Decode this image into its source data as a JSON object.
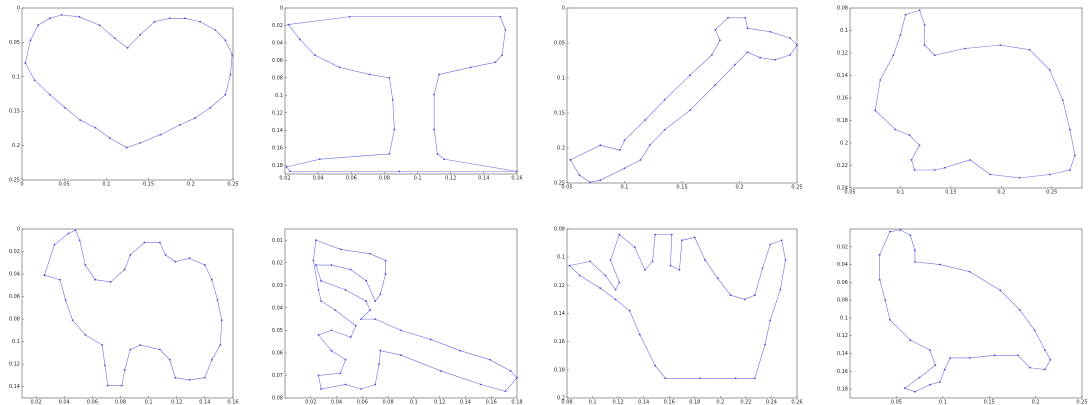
{
  "chart_data": [
    {
      "type": "line",
      "color": "#4b4bd8",
      "x": [
        0.004,
        0.01,
        0.019,
        0.033,
        0.047,
        0.068,
        0.092,
        0.11,
        0.125,
        0.14,
        0.157,
        0.175,
        0.193,
        0.211,
        0.229,
        0.241,
        0.249,
        0.247,
        0.241,
        0.223,
        0.205,
        0.187,
        0.164,
        0.14,
        0.124,
        0.104,
        0.087,
        0.069,
        0.051,
        0.033,
        0.015,
        0.004
      ],
      "values": [
        0.08,
        0.047,
        0.025,
        0.015,
        0.01,
        0.013,
        0.025,
        0.044,
        0.058,
        0.039,
        0.02,
        0.015,
        0.015,
        0.02,
        0.032,
        0.047,
        0.068,
        0.097,
        0.126,
        0.145,
        0.16,
        0.17,
        0.184,
        0.196,
        0.203,
        0.189,
        0.174,
        0.163,
        0.145,
        0.126,
        0.105,
        0.08
      ],
      "xlim": [
        0,
        0.25
      ],
      "xticks": [
        0,
        0.05,
        0.1,
        0.15,
        0.2,
        0.25
      ],
      "ylim": [
        0.25,
        0
      ],
      "yticks": [
        0,
        0.05,
        0.1,
        0.15,
        0.2,
        0.25
      ]
    },
    {
      "type": "line",
      "color": "#4b4bd8",
      "x": [
        0.022,
        0.059,
        0.15,
        0.153,
        0.151,
        0.147,
        0.132,
        0.113,
        0.11,
        0.11,
        0.112,
        0.116,
        0.16,
        0.089,
        0.023,
        0.021,
        0.041,
        0.083,
        0.086,
        0.085,
        0.083,
        0.071,
        0.053,
        0.038,
        0.029,
        0.022
      ],
      "values": [
        0.019,
        0.01,
        0.01,
        0.025,
        0.054,
        0.062,
        0.068,
        0.076,
        0.099,
        0.139,
        0.167,
        0.173,
        0.187,
        0.187,
        0.187,
        0.182,
        0.173,
        0.167,
        0.139,
        0.105,
        0.08,
        0.076,
        0.068,
        0.054,
        0.036,
        0.019
      ],
      "xlim": [
        0.02,
        0.16
      ],
      "xticks": [
        0.02,
        0.04,
        0.06,
        0.08,
        0.1,
        0.12,
        0.14,
        0.16
      ],
      "ylim": [
        0.19,
        0
      ],
      "yticks": [
        0,
        0.02,
        0.04,
        0.06,
        0.08,
        0.1,
        0.12,
        0.14,
        0.16,
        0.18
      ]
    },
    {
      "type": "line",
      "color": "#4b4bd8",
      "x": [
        0.053,
        0.079,
        0.096,
        0.1,
        0.118,
        0.135,
        0.157,
        0.176,
        0.183,
        0.179,
        0.19,
        0.205,
        0.207,
        0.227,
        0.244,
        0.25,
        0.244,
        0.231,
        0.218,
        0.207,
        0.196,
        0.179,
        0.157,
        0.135,
        0.122,
        0.114,
        0.1,
        0.079,
        0.07,
        0.061,
        0.053
      ],
      "values": [
        0.217,
        0.196,
        0.203,
        0.189,
        0.16,
        0.131,
        0.096,
        0.067,
        0.046,
        0.031,
        0.014,
        0.014,
        0.029,
        0.034,
        0.043,
        0.053,
        0.067,
        0.074,
        0.071,
        0.063,
        0.081,
        0.11,
        0.146,
        0.174,
        0.196,
        0.217,
        0.229,
        0.246,
        0.249,
        0.239,
        0.217
      ],
      "xlim": [
        0.05,
        0.25
      ],
      "xticks": [
        0.05,
        0.1,
        0.15,
        0.2,
        0.25
      ],
      "ylim": [
        0.25,
        0
      ],
      "yticks": [
        0,
        0.05,
        0.1,
        0.15,
        0.2,
        0.25
      ]
    },
    {
      "type": "line",
      "color": "#4b4bd8",
      "x": [
        0.075,
        0.08,
        0.093,
        0.1,
        0.105,
        0.119,
        0.124,
        0.124,
        0.134,
        0.164,
        0.199,
        0.228,
        0.248,
        0.261,
        0.268,
        0.273,
        0.268,
        0.248,
        0.218,
        0.189,
        0.169,
        0.144,
        0.134,
        0.114,
        0.111,
        0.119,
        0.109,
        0.095,
        0.075
      ],
      "values": [
        0.171,
        0.144,
        0.122,
        0.104,
        0.086,
        0.082,
        0.095,
        0.113,
        0.122,
        0.116,
        0.113,
        0.117,
        0.135,
        0.162,
        0.188,
        0.211,
        0.224,
        0.228,
        0.231,
        0.228,
        0.215,
        0.222,
        0.224,
        0.224,
        0.215,
        0.202,
        0.193,
        0.188,
        0.171
      ],
      "xlim": [
        0.05,
        0.28
      ],
      "xticks": [
        0.05,
        0.1,
        0.15,
        0.2,
        0.25
      ],
      "ylim": [
        0.24,
        0.08
      ],
      "yticks": [
        0.08,
        0.1,
        0.12,
        0.14,
        0.16,
        0.18,
        0.2,
        0.22,
        0.24
      ]
    },
    {
      "type": "line",
      "color": "#4b4bd8",
      "x": [
        0.026,
        0.033,
        0.043,
        0.048,
        0.051,
        0.055,
        0.062,
        0.073,
        0.083,
        0.087,
        0.097,
        0.108,
        0.112,
        0.119,
        0.129,
        0.14,
        0.145,
        0.149,
        0.152,
        0.151,
        0.145,
        0.14,
        0.129,
        0.119,
        0.115,
        0.108,
        0.094,
        0.087,
        0.083,
        0.081,
        0.071,
        0.069,
        0.067,
        0.055,
        0.046,
        0.041,
        0.037,
        0.026
      ],
      "values": [
        0.041,
        0.014,
        0.004,
        0.001,
        0.01,
        0.032,
        0.045,
        0.047,
        0.036,
        0.023,
        0.012,
        0.012,
        0.023,
        0.029,
        0.026,
        0.032,
        0.045,
        0.063,
        0.081,
        0.103,
        0.116,
        0.132,
        0.134,
        0.132,
        0.116,
        0.107,
        0.103,
        0.107,
        0.125,
        0.139,
        0.139,
        0.121,
        0.103,
        0.094,
        0.081,
        0.063,
        0.045,
        0.041
      ],
      "xlim": [
        0.01,
        0.16
      ],
      "xticks": [
        0.02,
        0.04,
        0.06,
        0.08,
        0.1,
        0.12,
        0.14,
        0.16
      ],
      "ylim": [
        0.15,
        0
      ],
      "yticks": [
        0,
        0.02,
        0.04,
        0.06,
        0.08,
        0.1,
        0.12,
        0.14
      ]
    },
    {
      "type": "line",
      "color": "#4b4bd8",
      "x": [
        0.024,
        0.043,
        0.066,
        0.078,
        0.078,
        0.074,
        0.07,
        0.063,
        0.051,
        0.036,
        0.024,
        0.028,
        0.047,
        0.063,
        0.066,
        0.059,
        0.07,
        0.09,
        0.113,
        0.136,
        0.159,
        0.175,
        0.18,
        0.171,
        0.152,
        0.121,
        0.09,
        0.074,
        0.073,
        0.07,
        0.059,
        0.047,
        0.028,
        0.026,
        0.043,
        0.047,
        0.036,
        0.026,
        0.036,
        0.051,
        0.055,
        0.039,
        0.028,
        0.026,
        0.022,
        0.024
      ],
      "values": [
        0.01,
        0.014,
        0.016,
        0.019,
        0.025,
        0.034,
        0.037,
        0.028,
        0.023,
        0.021,
        0.021,
        0.028,
        0.032,
        0.037,
        0.041,
        0.045,
        0.045,
        0.05,
        0.054,
        0.059,
        0.063,
        0.068,
        0.071,
        0.077,
        0.074,
        0.068,
        0.061,
        0.059,
        0.065,
        0.074,
        0.076,
        0.074,
        0.076,
        0.07,
        0.069,
        0.063,
        0.059,
        0.052,
        0.05,
        0.053,
        0.048,
        0.041,
        0.037,
        0.032,
        0.019,
        0.01
      ],
      "xlim": [
        0,
        0.18
      ],
      "xticks": [
        0.02,
        0.04,
        0.06,
        0.08,
        0.1,
        0.12,
        0.14,
        0.16,
        0.18
      ],
      "ylim": [
        0.08,
        0.005
      ],
      "yticks": [
        0.01,
        0.02,
        0.03,
        0.04,
        0.05,
        0.06,
        0.07,
        0.08
      ]
    },
    {
      "type": "line",
      "color": "#4b4bd8",
      "x": [
        0.082,
        0.098,
        0.11,
        0.118,
        0.121,
        0.114,
        0.121,
        0.133,
        0.141,
        0.147,
        0.149,
        0.162,
        0.161,
        0.168,
        0.17,
        0.18,
        0.188,
        0.198,
        0.208,
        0.219,
        0.227,
        0.233,
        0.239,
        0.248,
        0.251,
        0.247,
        0.239,
        0.235,
        0.227,
        0.212,
        0.184,
        0.157,
        0.149,
        0.137,
        0.129,
        0.118,
        0.106,
        0.09,
        0.082
      ],
      "values": [
        0.106,
        0.103,
        0.113,
        0.123,
        0.118,
        0.102,
        0.084,
        0.093,
        0.109,
        0.103,
        0.084,
        0.084,
        0.106,
        0.109,
        0.088,
        0.086,
        0.102,
        0.115,
        0.127,
        0.13,
        0.127,
        0.108,
        0.091,
        0.088,
        0.102,
        0.123,
        0.145,
        0.162,
        0.186,
        0.186,
        0.186,
        0.186,
        0.177,
        0.155,
        0.138,
        0.13,
        0.122,
        0.113,
        0.106
      ],
      "xlim": [
        0.08,
        0.26
      ],
      "xticks": [
        0.08,
        0.1,
        0.12,
        0.14,
        0.16,
        0.18,
        0.2,
        0.22,
        0.24,
        0.26
      ],
      "ylim": [
        0.2,
        0.08
      ],
      "yticks": [
        0.08,
        0.1,
        0.12,
        0.14,
        0.16,
        0.18,
        0.2
      ]
    },
    {
      "type": "line",
      "color": "#4b4bd8",
      "x": [
        0.032,
        0.043,
        0.054,
        0.065,
        0.07,
        0.07,
        0.097,
        0.129,
        0.162,
        0.183,
        0.199,
        0.21,
        0.216,
        0.21,
        0.194,
        0.181,
        0.156,
        0.129,
        0.108,
        0.102,
        0.097,
        0.086,
        0.07,
        0.059,
        0.075,
        0.092,
        0.086,
        0.065,
        0.043,
        0.038,
        0.032,
        0.032
      ],
      "values": [
        0.029,
        0.003,
        0.001,
        0.007,
        0.024,
        0.037,
        0.04,
        0.048,
        0.069,
        0.091,
        0.114,
        0.136,
        0.147,
        0.158,
        0.156,
        0.142,
        0.142,
        0.145,
        0.145,
        0.158,
        0.172,
        0.175,
        0.183,
        0.179,
        0.167,
        0.153,
        0.136,
        0.125,
        0.102,
        0.08,
        0.057,
        0.029
      ],
      "xlim": [
        0,
        0.25
      ],
      "xticks": [
        0.05,
        0.1,
        0.15,
        0.2,
        0.25
      ],
      "ylim": [
        0.19,
        0
      ],
      "yticks": [
        0.02,
        0.04,
        0.06,
        0.08,
        0.1,
        0.12,
        0.14,
        0.16,
        0.18
      ]
    }
  ]
}
